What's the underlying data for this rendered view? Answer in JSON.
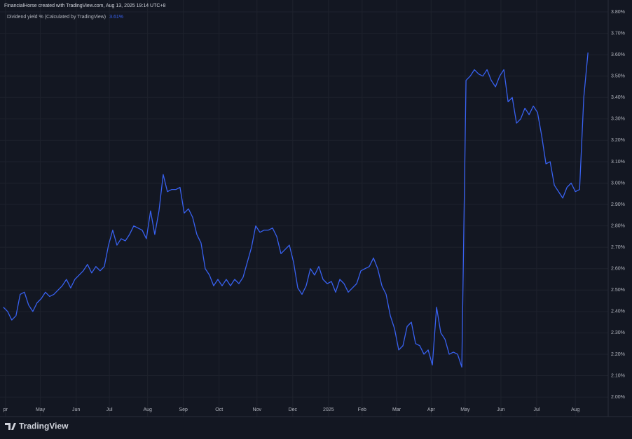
{
  "header": "FinancialHorse created with TradingView.com, Aug 13, 2025 19:14 UTC+8",
  "logo": "TradingView",
  "chart_data": {
    "type": "line",
    "legend_value": "3.61%",
    "series": [
      {
        "name": "Dividend yield % (Calculated by TradingView)",
        "color": "#3861f0",
        "values": [
          2.42,
          2.4,
          2.36,
          2.38,
          2.48,
          2.49,
          2.43,
          2.4,
          2.44,
          2.46,
          2.49,
          2.47,
          2.48,
          2.5,
          2.52,
          2.55,
          2.51,
          2.55,
          2.57,
          2.59,
          2.62,
          2.58,
          2.61,
          2.59,
          2.61,
          2.71,
          2.78,
          2.71,
          2.74,
          2.73,
          2.76,
          2.8,
          2.79,
          2.78,
          2.74,
          2.87,
          2.76,
          2.87,
          3.04,
          2.96,
          2.97,
          2.97,
          2.98,
          2.86,
          2.88,
          2.84,
          2.76,
          2.72,
          2.6,
          2.57,
          2.52,
          2.55,
          2.52,
          2.55,
          2.52,
          2.55,
          2.53,
          2.56,
          2.63,
          2.7,
          2.8,
          2.77,
          2.78,
          2.78,
          2.79,
          2.75,
          2.67,
          2.69,
          2.71,
          2.63,
          2.51,
          2.48,
          2.52,
          2.6,
          2.57,
          2.61,
          2.55,
          2.53,
          2.54,
          2.49,
          2.55,
          2.53,
          2.49,
          2.51,
          2.53,
          2.59,
          2.6,
          2.61,
          2.65,
          2.6,
          2.52,
          2.48,
          2.38,
          2.32,
          2.22,
          2.24,
          2.33,
          2.35,
          2.25,
          2.24,
          2.2,
          2.22,
          2.15,
          2.42,
          2.3,
          2.27,
          2.2,
          2.21,
          2.2,
          2.14,
          3.48,
          3.5,
          3.53,
          3.51,
          3.5,
          3.53,
          3.48,
          3.45,
          3.5,
          3.53,
          3.38,
          3.4,
          3.28,
          3.3,
          3.35,
          3.32,
          3.36,
          3.33,
          3.22,
          3.09,
          3.1,
          2.99,
          2.96,
          2.93,
          2.98,
          3.0,
          2.96,
          2.97,
          3.4,
          3.61
        ]
      }
    ],
    "xlim": [
      -0.8,
      143.8
    ],
    "xticks": [
      {
        "value": 0.5,
        "label": "pr"
      },
      {
        "value": 8.8,
        "label": "May"
      },
      {
        "value": 17.3,
        "label": "Jun"
      },
      {
        "value": 25.2,
        "label": "Jul"
      },
      {
        "value": 34.3,
        "label": "Aug"
      },
      {
        "value": 42.8,
        "label": "Sep"
      },
      {
        "value": 51.3,
        "label": "Oct"
      },
      {
        "value": 60.3,
        "label": "Nov"
      },
      {
        "value": 68.8,
        "label": "Dec"
      },
      {
        "value": 77.3,
        "label": "2025"
      },
      {
        "value": 85.3,
        "label": "Feb"
      },
      {
        "value": 93.5,
        "label": "Mar"
      },
      {
        "value": 101.7,
        "label": "Apr"
      },
      {
        "value": 109.8,
        "label": "May"
      },
      {
        "value": 118.3,
        "label": "Jun"
      },
      {
        "value": 126.8,
        "label": "Jul"
      },
      {
        "value": 136,
        "label": "Aug"
      }
    ],
    "ylim": [
      1.925,
      3.823
    ],
    "yticks": [
      {
        "value": 2.0,
        "label": "2.00%"
      },
      {
        "value": 2.1,
        "label": "2.10%"
      },
      {
        "value": 2.2,
        "label": "2.20%"
      },
      {
        "value": 2.3,
        "label": "2.30%"
      },
      {
        "value": 2.4,
        "label": "2.40%"
      },
      {
        "value": 2.5,
        "label": "2.50%"
      },
      {
        "value": 2.6,
        "label": "2.60%"
      },
      {
        "value": 2.7,
        "label": "2.70%"
      },
      {
        "value": 2.8,
        "label": "2.80%"
      },
      {
        "value": 2.9,
        "label": "2.90%"
      },
      {
        "value": 3.0,
        "label": "3.00%"
      },
      {
        "value": 3.1,
        "label": "3.10%"
      },
      {
        "value": 3.2,
        "label": "3.20%"
      },
      {
        "value": 3.3,
        "label": "3.30%"
      },
      {
        "value": 3.4,
        "label": "3.40%"
      },
      {
        "value": 3.5,
        "label": "3.50%"
      },
      {
        "value": 3.6,
        "label": "3.60%"
      },
      {
        "value": 3.7,
        "label": "3.70%"
      },
      {
        "value": 3.8,
        "label": "3.80%"
      }
    ],
    "grid": true
  }
}
